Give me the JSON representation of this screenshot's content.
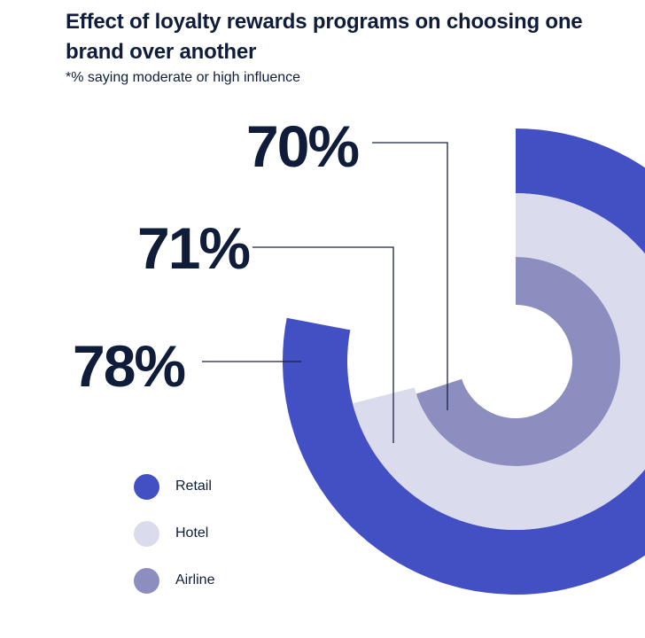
{
  "chart_data": {
    "type": "radial-bar",
    "title": "Effect of loyalty rewards programs on choosing one brand over another",
    "subtitle": "*% saying moderate or high influence",
    "unit": "%",
    "series": [
      {
        "name": "Retail",
        "value": 78,
        "label": "78%",
        "color": "#4350c3"
      },
      {
        "name": "Hotel",
        "value": 71,
        "label": "71%",
        "color": "#dadbec"
      },
      {
        "name": "Airline",
        "value": 70,
        "label": "70%",
        "color": "#8b8ebe"
      }
    ]
  },
  "legend": [
    {
      "label": "Retail",
      "color": "#4350c3"
    },
    {
      "label": "Hotel",
      "color": "#dadbec"
    },
    {
      "label": "Airline",
      "color": "#8b8ebe"
    }
  ]
}
